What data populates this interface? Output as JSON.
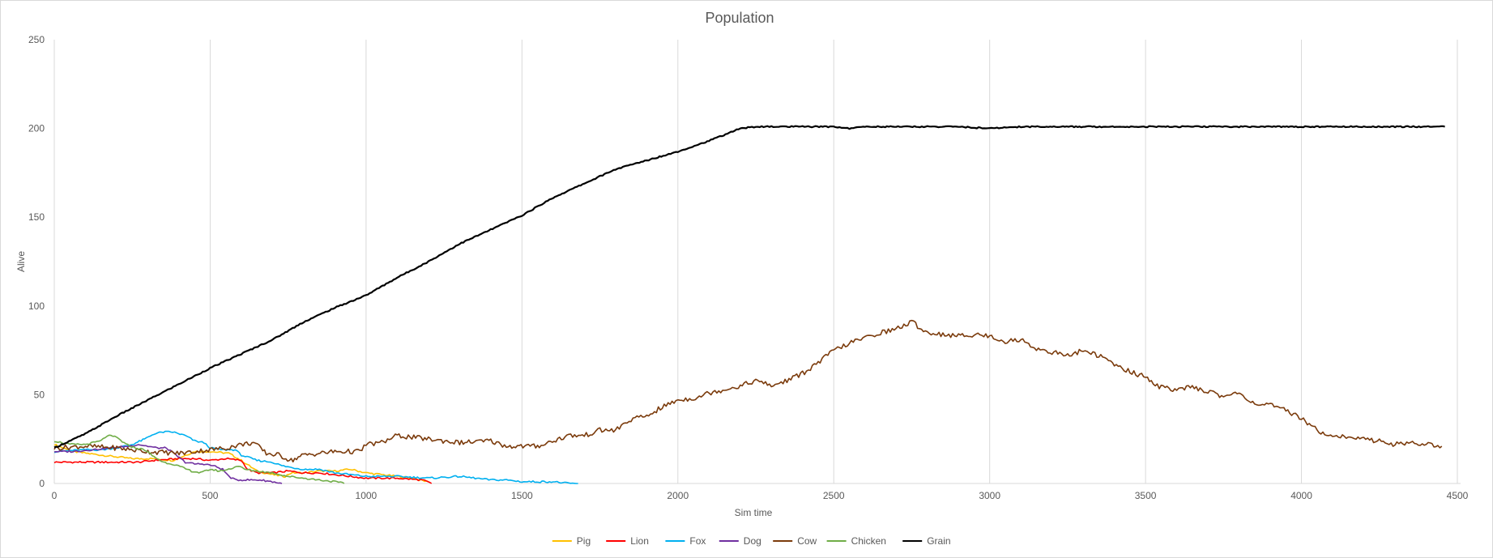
{
  "chart_data": {
    "type": "line",
    "title": "Population",
    "xlabel": "Sim time",
    "ylabel": "Alive",
    "xlim": [
      0,
      4500
    ],
    "ylim": [
      0,
      250
    ],
    "x_ticks": [
      0,
      500,
      1000,
      1500,
      2000,
      2500,
      3000,
      3500,
      4000,
      4500
    ],
    "y_ticks": [
      0,
      50,
      100,
      150,
      200,
      250
    ],
    "grid": "vertical",
    "legend_position": "bottom",
    "series": [
      {
        "name": "Pig",
        "color": "#FFC000",
        "points": [
          [
            0,
            22
          ],
          [
            60,
            18
          ],
          [
            150,
            16
          ],
          [
            250,
            14
          ],
          [
            320,
            14
          ],
          [
            380,
            13
          ],
          [
            450,
            18
          ],
          [
            500,
            18
          ],
          [
            560,
            17
          ],
          [
            600,
            13
          ],
          [
            650,
            7
          ],
          [
            700,
            5
          ],
          [
            740,
            4
          ],
          [
            760,
            6
          ],
          [
            800,
            6
          ],
          [
            850,
            7
          ],
          [
            900,
            7
          ],
          [
            950,
            8
          ],
          [
            1000,
            6
          ],
          [
            1050,
            5
          ],
          [
            1100,
            4
          ],
          [
            1150,
            3
          ],
          [
            1170,
            2
          ],
          [
            1200,
            1
          ]
        ]
      },
      {
        "name": "Lion",
        "color": "#FF0000",
        "points": [
          [
            0,
            12
          ],
          [
            100,
            12
          ],
          [
            230,
            12
          ],
          [
            270,
            12
          ],
          [
            320,
            13
          ],
          [
            400,
            14
          ],
          [
            450,
            14
          ],
          [
            500,
            13
          ],
          [
            550,
            14
          ],
          [
            600,
            13
          ],
          [
            620,
            8
          ],
          [
            650,
            6
          ],
          [
            700,
            6
          ],
          [
            750,
            7
          ],
          [
            800,
            6
          ],
          [
            850,
            6
          ],
          [
            900,
            5
          ],
          [
            950,
            4
          ],
          [
            1000,
            3
          ],
          [
            1050,
            3
          ],
          [
            1100,
            3
          ],
          [
            1180,
            2
          ],
          [
            1210,
            0
          ]
        ]
      },
      {
        "name": "Fox",
        "color": "#00B0F0",
        "points": [
          [
            0,
            18
          ],
          [
            100,
            19
          ],
          [
            150,
            19
          ],
          [
            200,
            20
          ],
          [
            250,
            22
          ],
          [
            290,
            25
          ],
          [
            320,
            28
          ],
          [
            350,
            29
          ],
          [
            380,
            29
          ],
          [
            420,
            27
          ],
          [
            450,
            24
          ],
          [
            480,
            23
          ],
          [
            500,
            20
          ],
          [
            540,
            19
          ],
          [
            580,
            19
          ],
          [
            600,
            16
          ],
          [
            650,
            13
          ],
          [
            700,
            12
          ],
          [
            730,
            10
          ],
          [
            760,
            9
          ],
          [
            800,
            8
          ],
          [
            850,
            8
          ],
          [
            900,
            6
          ],
          [
            950,
            5
          ],
          [
            1000,
            4
          ],
          [
            1100,
            4
          ],
          [
            1200,
            3
          ],
          [
            1300,
            4
          ],
          [
            1350,
            3
          ],
          [
            1400,
            2
          ],
          [
            1450,
            2
          ],
          [
            1500,
            1
          ],
          [
            1600,
            1
          ],
          [
            1650,
            0
          ],
          [
            1680,
            0
          ]
        ]
      },
      {
        "name": "Dog",
        "color": "#7030A0",
        "points": [
          [
            0,
            18
          ],
          [
            60,
            18
          ],
          [
            120,
            19
          ],
          [
            180,
            20
          ],
          [
            240,
            21
          ],
          [
            270,
            22
          ],
          [
            300,
            21
          ],
          [
            330,
            20
          ],
          [
            360,
            20
          ],
          [
            390,
            16
          ],
          [
            420,
            12
          ],
          [
            450,
            11
          ],
          [
            480,
            11
          ],
          [
            510,
            10
          ],
          [
            540,
            8
          ],
          [
            560,
            4
          ],
          [
            580,
            2
          ],
          [
            620,
            2
          ],
          [
            660,
            2
          ],
          [
            700,
            1
          ],
          [
            730,
            0
          ]
        ]
      },
      {
        "name": "Cow",
        "color": "#7B3B0C",
        "points": [
          [
            0,
            20
          ],
          [
            100,
            21
          ],
          [
            200,
            20
          ],
          [
            300,
            18
          ],
          [
            400,
            17
          ],
          [
            500,
            19
          ],
          [
            550,
            20
          ],
          [
            600,
            22
          ],
          [
            640,
            23
          ],
          [
            680,
            17
          ],
          [
            720,
            16
          ],
          [
            760,
            13
          ],
          [
            800,
            16
          ],
          [
            900,
            18
          ],
          [
            980,
            18
          ],
          [
            1000,
            22
          ],
          [
            1050,
            23
          ],
          [
            1100,
            27
          ],
          [
            1200,
            25
          ],
          [
            1300,
            23
          ],
          [
            1400,
            24
          ],
          [
            1450,
            21
          ],
          [
            1550,
            21
          ],
          [
            1650,
            27
          ],
          [
            1700,
            27
          ],
          [
            1750,
            30
          ],
          [
            1800,
            30
          ],
          [
            1850,
            36
          ],
          [
            1900,
            38
          ],
          [
            1950,
            43
          ],
          [
            2000,
            47
          ],
          [
            2050,
            48
          ],
          [
            2100,
            51
          ],
          [
            2150,
            53
          ],
          [
            2200,
            55
          ],
          [
            2250,
            58
          ],
          [
            2300,
            55
          ],
          [
            2350,
            58
          ],
          [
            2400,
            62
          ],
          [
            2450,
            68
          ],
          [
            2500,
            75
          ],
          [
            2550,
            79
          ],
          [
            2600,
            82
          ],
          [
            2650,
            85
          ],
          [
            2700,
            87
          ],
          [
            2750,
            91
          ],
          [
            2800,
            85
          ],
          [
            2850,
            84
          ],
          [
            2900,
            83
          ],
          [
            2950,
            84
          ],
          [
            3000,
            83
          ],
          [
            3050,
            80
          ],
          [
            3100,
            81
          ],
          [
            3150,
            76
          ],
          [
            3200,
            74
          ],
          [
            3250,
            72
          ],
          [
            3300,
            75
          ],
          [
            3350,
            72
          ],
          [
            3400,
            67
          ],
          [
            3450,
            63
          ],
          [
            3500,
            60
          ],
          [
            3550,
            54
          ],
          [
            3600,
            53
          ],
          [
            3650,
            54
          ],
          [
            3700,
            52
          ],
          [
            3750,
            49
          ],
          [
            3800,
            51
          ],
          [
            3850,
            45
          ],
          [
            3900,
            44
          ],
          [
            3950,
            41
          ],
          [
            4000,
            37
          ],
          [
            4050,
            30
          ],
          [
            4100,
            27
          ],
          [
            4150,
            26
          ],
          [
            4200,
            25
          ],
          [
            4250,
            24
          ],
          [
            4300,
            22
          ],
          [
            4350,
            23
          ],
          [
            4400,
            22
          ],
          [
            4450,
            21
          ]
        ]
      },
      {
        "name": "Chicken",
        "color": "#70AD47",
        "points": [
          [
            0,
            24
          ],
          [
            50,
            22
          ],
          [
            100,
            22
          ],
          [
            150,
            24
          ],
          [
            170,
            27
          ],
          [
            200,
            26
          ],
          [
            230,
            22
          ],
          [
            260,
            20
          ],
          [
            290,
            19
          ],
          [
            320,
            15
          ],
          [
            350,
            12
          ],
          [
            380,
            11
          ],
          [
            410,
            9
          ],
          [
            440,
            7
          ],
          [
            470,
            6
          ],
          [
            500,
            8
          ],
          [
            530,
            7
          ],
          [
            560,
            8
          ],
          [
            590,
            10
          ],
          [
            610,
            8
          ],
          [
            650,
            7
          ],
          [
            700,
            6
          ],
          [
            750,
            4
          ],
          [
            800,
            3
          ],
          [
            850,
            2
          ],
          [
            900,
            1
          ],
          [
            930,
            0
          ]
        ]
      },
      {
        "name": "Grain",
        "color": "#000000",
        "points": [
          [
            0,
            20
          ],
          [
            100,
            28
          ],
          [
            200,
            38
          ],
          [
            300,
            47
          ],
          [
            400,
            56
          ],
          [
            500,
            65
          ],
          [
            600,
            73
          ],
          [
            700,
            81
          ],
          [
            800,
            91
          ],
          [
            900,
            99
          ],
          [
            1000,
            106
          ],
          [
            1100,
            116
          ],
          [
            1200,
            125
          ],
          [
            1300,
            135
          ],
          [
            1400,
            143
          ],
          [
            1500,
            151
          ],
          [
            1600,
            161
          ],
          [
            1700,
            169
          ],
          [
            1800,
            177
          ],
          [
            1900,
            182
          ],
          [
            2000,
            187
          ],
          [
            2100,
            193
          ],
          [
            2200,
            200
          ],
          [
            2250,
            201
          ],
          [
            2300,
            201
          ],
          [
            2400,
            201
          ],
          [
            2500,
            201
          ],
          [
            2550,
            200
          ],
          [
            2600,
            201
          ],
          [
            2700,
            201
          ],
          [
            2800,
            201
          ],
          [
            2900,
            201
          ],
          [
            3000,
            200
          ],
          [
            3100,
            201
          ],
          [
            3200,
            201
          ],
          [
            3300,
            201
          ],
          [
            3400,
            201
          ],
          [
            3500,
            201
          ],
          [
            3600,
            201
          ],
          [
            3700,
            201
          ],
          [
            3800,
            201
          ],
          [
            3900,
            201
          ],
          [
            4000,
            201
          ],
          [
            4100,
            201
          ],
          [
            4200,
            201
          ],
          [
            4300,
            201
          ],
          [
            4400,
            201
          ],
          [
            4460,
            201
          ]
        ]
      }
    ]
  }
}
